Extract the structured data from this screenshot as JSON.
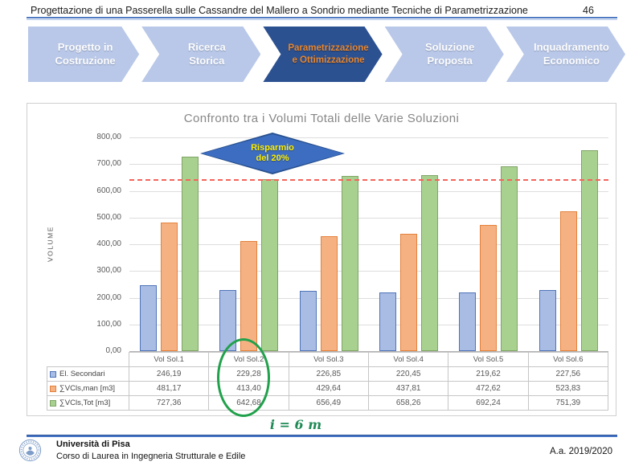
{
  "header": {
    "title": "Progettazione di una Passerella sulle Cassandre del Mallero a Sondrio mediante Tecniche di Parametrizzazione",
    "page_number": "46"
  },
  "nav": {
    "steps": [
      {
        "label": "Progetto in Costruzione",
        "line1": "Progetto in",
        "line2": "Costruzione",
        "active": false
      },
      {
        "label": "Ricerca Storica",
        "line1": "Ricerca",
        "line2": "Storica",
        "active": false
      },
      {
        "label": "Parametrizzazione e Ottimizzazione",
        "line1": "Parametrizzazione",
        "line2": "e Ottimizzazione",
        "active": true
      },
      {
        "label": "Soluzione Proposta",
        "line1": "Soluzione",
        "line2": "Proposta",
        "active": false
      },
      {
        "label": "Inquadramento Economico",
        "line1": "Inquadramento",
        "line2": "Economico",
        "active": false
      }
    ]
  },
  "chart_data": {
    "type": "bar",
    "title": "Confronto tra i Volumi Totali delle Varie Soluzioni",
    "xlabel": "",
    "ylabel": "VOLUME",
    "ylim": [
      0,
      800
    ],
    "ytick_step": 100,
    "ytick_labels": [
      "0,00",
      "100,00",
      "200,00",
      "300,00",
      "400,00",
      "500,00",
      "600,00",
      "700,00",
      "800,00"
    ],
    "grid": true,
    "legend_position": "data-table-left",
    "categories": [
      "Vol Sol.1",
      "Vol Sol.2",
      "Vol Sol.3",
      "Vol Sol.4",
      "Vol Sol.5",
      "Vol Sol.6"
    ],
    "series": [
      {
        "name": "El. Secondari",
        "values": [
          246.19,
          229.28,
          226.85,
          220.45,
          219.62,
          227.56
        ],
        "display": [
          "246,19",
          "229,28",
          "226,85",
          "220,45",
          "219,62",
          "227,56"
        ],
        "fill": "#a9bce4",
        "border": "#4f74b8"
      },
      {
        "name": "∑VCls,man [m3]",
        "values": [
          481.17,
          413.4,
          429.64,
          437.81,
          472.62,
          523.83
        ],
        "display": [
          "481,17",
          "413,40",
          "429,64",
          "437,81",
          "472,62",
          "523,83"
        ],
        "fill": "#f6b183",
        "border": "#e4813c"
      },
      {
        "name": "∑VCls,Tot [m3]",
        "values": [
          727.36,
          642.68,
          656.49,
          658.26,
          692.24,
          751.39
        ],
        "display": [
          "727,36",
          "642,68",
          "656,49",
          "658,26",
          "692,24",
          "751,39"
        ],
        "fill": "#a8d08e",
        "border": "#7fa566"
      }
    ],
    "target_line": {
      "value": 642.68,
      "color": "#f4655c",
      "style": "dashed"
    },
    "annotation": {
      "line1": "Risparmio",
      "line2": "del 20%",
      "fill": "#3d6dc0",
      "border": "#27508f",
      "text_color": "#ffef00"
    },
    "highlighted_category": "Vol Sol.2"
  },
  "spacing_note": "i = 6 m",
  "footer": {
    "institution": "Università di Pisa",
    "course": "Corso di Laurea in Ingegneria Strutturale e Edile",
    "academic_year": "A.a. 2019/2020"
  },
  "colors": {
    "accent_blue": "#4472c4",
    "nav_light": "#b9c8e8",
    "nav_active": "#2c5191",
    "nav_active_text": "#e8862d",
    "highlight_green": "#21a14b",
    "note_green": "#1f8a55"
  }
}
